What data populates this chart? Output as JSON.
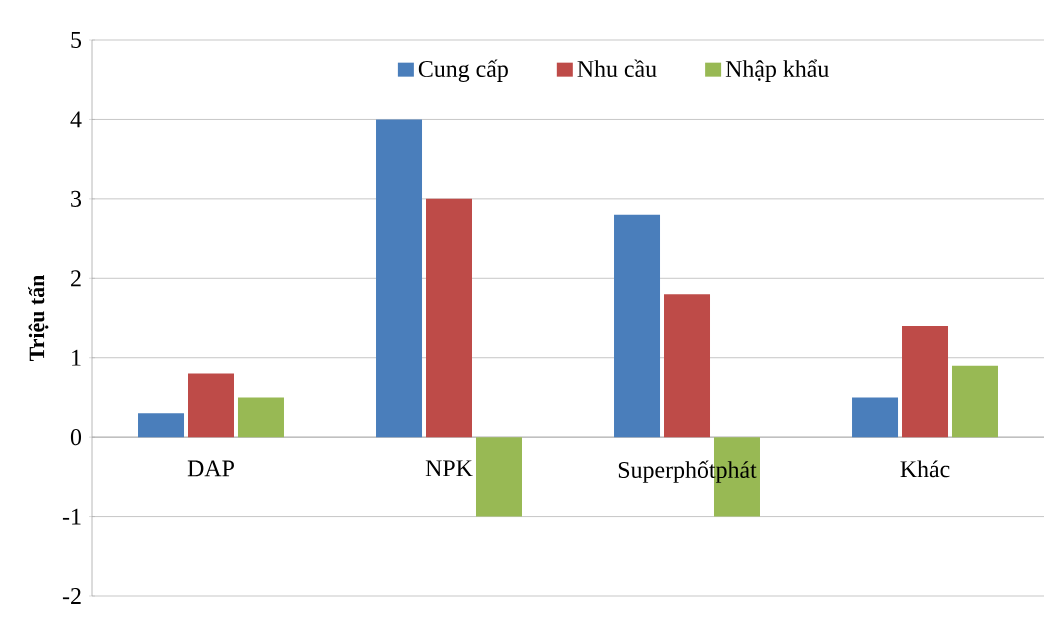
{
  "chart_data": {
    "type": "bar",
    "ylabel": "Triệu tấn",
    "categories": [
      "DAP",
      "NPK",
      "Superphốtphát",
      "Khác"
    ],
    "series": [
      {
        "name": "Cung cấp",
        "color": "#4a7ebb",
        "values": [
          0.3,
          4,
          2.8,
          0.5
        ]
      },
      {
        "name": "Nhu cầu",
        "color": "#be4b48",
        "values": [
          0.8,
          3,
          1.8,
          1.4
        ]
      },
      {
        "name": "Nhập khẩu",
        "color": "#98b954",
        "values": [
          0.5,
          -1,
          -1,
          0.9
        ]
      }
    ],
    "ylim": [
      -2,
      5
    ],
    "yticks": [
      -2,
      -1,
      0,
      1,
      2,
      3,
      4,
      5
    ],
    "grid": "y",
    "legend": "top"
  }
}
